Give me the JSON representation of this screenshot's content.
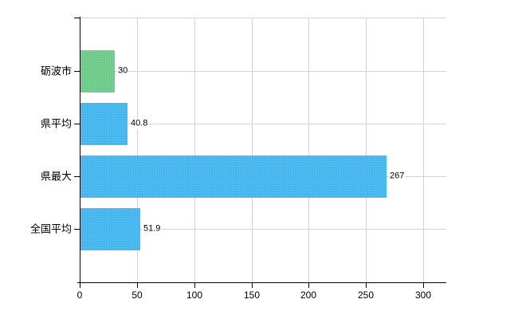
{
  "chart_data": {
    "type": "bar",
    "orientation": "horizontal",
    "title": "",
    "categories": [
      "砺波市",
      "県平均",
      "県最大",
      "全国平均"
    ],
    "values": [
      30,
      40.8,
      267,
      51.9
    ],
    "value_labels": [
      "30",
      "40.8",
      "267",
      "51.9"
    ],
    "bar_colors": [
      "#6ecb8b",
      "#45b7ee",
      "#45b7ee",
      "#45b7ee"
    ],
    "x_ticks": [
      0,
      50,
      100,
      150,
      200,
      250,
      300
    ],
    "x_tick_labels": [
      "0",
      "50",
      "100",
      "150",
      "200",
      "250",
      "300"
    ],
    "xlim": [
      0,
      320
    ],
    "grid": true,
    "gridline_positions": "vertical at each x tick, horizontal at each category center, top border line"
  },
  "colors": {
    "background": "#ffffff",
    "grid": "#d4d4d4",
    "axis": "#000000",
    "text": "#000000",
    "bar_blue": "#45b7ee",
    "bar_green": "#6ecb8b"
  }
}
